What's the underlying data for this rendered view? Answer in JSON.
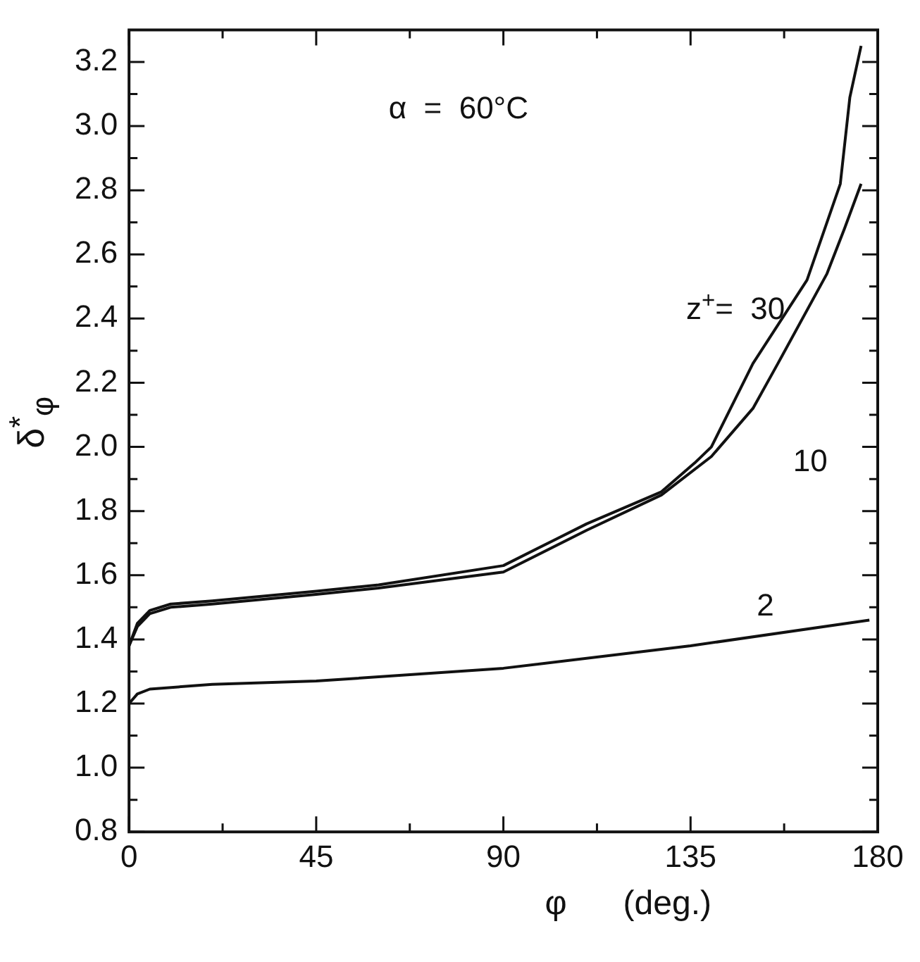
{
  "chart_data": {
    "type": "line",
    "xlabel": "φ      (deg.)",
    "ylabel": "δ$^{*}$$_{φ}$",
    "xlim": [
      0,
      180
    ],
    "ylim": [
      0.8,
      3.3
    ],
    "xticks": [
      0,
      {
        "value": 22.5,
        "label": null
      },
      45,
      {
        "value": 67.5,
        "label": null
      },
      90,
      {
        "value": 112.5,
        "label": null
      },
      135,
      {
        "value": 157.5,
        "label": null
      },
      180
    ],
    "yticks": [
      {
        "value": 0.8,
        "label": "0.8"
      },
      {
        "value": 0.9,
        "label": null
      },
      {
        "value": 1.0,
        "label": "1.0"
      },
      {
        "value": 1.1,
        "label": null
      },
      {
        "value": 1.2,
        "label": "1.2"
      },
      {
        "value": 1.3,
        "label": null
      },
      {
        "value": 1.4,
        "label": "1.4"
      },
      {
        "value": 1.5,
        "label": null
      },
      {
        "value": 1.6,
        "label": "1.6"
      },
      {
        "value": 1.7,
        "label": null
      },
      {
        "value": 1.8,
        "label": "1.8"
      },
      {
        "value": 1.9,
        "label": null
      },
      {
        "value": 2.0,
        "label": "2.0"
      },
      {
        "value": 2.1,
        "label": null
      },
      {
        "value": 2.2,
        "label": "2.2"
      },
      {
        "value": 2.3,
        "label": null
      },
      {
        "value": 2.4,
        "label": "2.4"
      },
      {
        "value": 2.5,
        "label": null
      },
      {
        "value": 2.6,
        "label": "2.6"
      },
      {
        "value": 2.7,
        "label": null
      },
      {
        "value": 2.8,
        "label": "2.8"
      },
      {
        "value": 2.9,
        "label": null
      },
      {
        "value": 3.0,
        "label": "3.0"
      },
      {
        "value": 3.1,
        "label": null
      },
      {
        "value": 3.2,
        "label": "3.2"
      }
    ],
    "legend": false,
    "line_style": "solid",
    "marker": "none",
    "series": [
      {
        "color": "#111111",
        "x": [
          0,
          2,
          5,
          10,
          20,
          45,
          60,
          90,
          110,
          128,
          136,
          140,
          150,
          163,
          171,
          173.3,
          176
        ],
        "values": [
          1.38,
          1.45,
          1.49,
          1.51,
          1.52,
          1.55,
          1.57,
          1.63,
          1.76,
          1.86,
          1.95,
          2.0,
          2.26,
          2.52,
          2.82,
          3.09,
          3.25
        ]
      },
      {
        "color": "#111111",
        "x": [
          0,
          2,
          5,
          10,
          20,
          45,
          60,
          90,
          110,
          128,
          140,
          150,
          156,
          167.8,
          172,
          176
        ],
        "values": [
          1.38,
          1.44,
          1.48,
          1.5,
          1.51,
          1.54,
          1.56,
          1.61,
          1.74,
          1.85,
          1.97,
          2.12,
          2.26,
          2.54,
          2.68,
          2.82
        ]
      },
      {
        "color": "#111111",
        "x": [
          0,
          2,
          5,
          20,
          45,
          90,
          135,
          178
        ],
        "values": [
          1.2,
          1.23,
          1.245,
          1.26,
          1.27,
          1.31,
          1.38,
          1.46
        ]
      }
    ],
    "annotations": [
      "α  =  60°C",
      "z$^{+}$=  30",
      "10",
      "2"
    ]
  }
}
